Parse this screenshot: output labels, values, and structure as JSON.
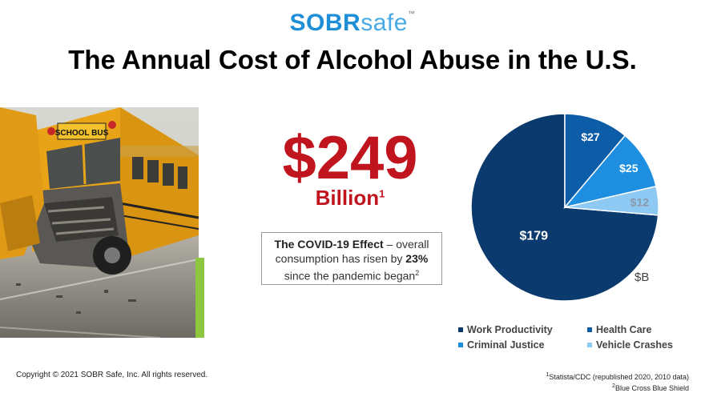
{
  "logo": {
    "bold": "SOBR",
    "thin": "safe",
    "tm": "™"
  },
  "title": "The Annual Cost of Alcohol Abuse in the U.S.",
  "photo": {
    "sign": "SCHOOL BUS"
  },
  "headline": {
    "value": "$249",
    "unit": "Billion",
    "footnote": "1"
  },
  "covid": {
    "lead": "The COVID-19 Effect",
    "text1": " – overall consumption has risen by ",
    "percent": "23%",
    "text2": " since the pandemic began",
    "footnote": "2"
  },
  "chart_data": {
    "type": "pie",
    "unit_label": "$B",
    "slices": [
      {
        "name": "Work Productivity",
        "value": 179,
        "label": "$179",
        "color": "#0b3a6e"
      },
      {
        "name": "Health Care",
        "value": 27,
        "label": "$27",
        "color": "#0d5ca8"
      },
      {
        "name": "Criminal Justice",
        "value": 25,
        "label": "$25",
        "color": "#1e8fe0"
      },
      {
        "name": "Vehicle Crashes",
        "value": 12,
        "label": "$12",
        "color": "#8ec9f3"
      }
    ],
    "legend_position": "bottom"
  },
  "copyright": "Copyright © 2021 SOBR Safe, Inc. All rights reserved.",
  "footnotes": [
    {
      "mark": "1",
      "text": "Statista/CDC (republished 2020, 2010 data)"
    },
    {
      "mark": "2",
      "text": "Blue Cross Blue Shield"
    }
  ]
}
